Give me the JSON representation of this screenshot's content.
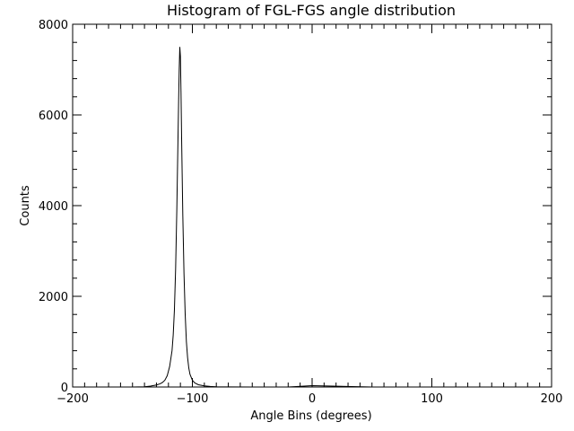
{
  "chart_data": {
    "type": "line",
    "title": "Histogram of FGL-FGS angle distribution",
    "xlabel": "Angle Bins (degrees)",
    "ylabel": "Counts",
    "xlim": [
      -200,
      200
    ],
    "ylim": [
      0,
      8000
    ],
    "xticks": [
      -200,
      -100,
      0,
      100,
      200
    ],
    "xtick_labels": [
      "−200",
      "−100",
      "0",
      "100",
      "200"
    ],
    "yticks": [
      0,
      2000,
      4000,
      6000,
      8000
    ],
    "ytick_labels": [
      "0",
      "2000",
      "4000",
      "6000",
      "8000"
    ],
    "grid": false,
    "legend": "none",
    "series": [
      {
        "x": [
          -200,
          -150,
          -140,
          -135,
          -130,
          -127,
          -125,
          -123,
          -121,
          -119,
          -117,
          -116,
          -115,
          -114,
          -113,
          -112,
          -111.5,
          -111,
          -110.5,
          -110,
          -109.5,
          -109,
          -108,
          -107,
          -106,
          -105,
          -104,
          -103,
          -102,
          -100,
          -98,
          -95,
          -90,
          -85,
          -80,
          -75,
          -50,
          -20,
          0,
          50,
          100,
          150,
          200
        ],
        "y": [
          0,
          0,
          5,
          20,
          45,
          70,
          100,
          150,
          250,
          450,
          800,
          1150,
          1700,
          2600,
          3900,
          5500,
          6300,
          7000,
          7500,
          7300,
          6500,
          5500,
          3800,
          2500,
          1600,
          1000,
          650,
          420,
          280,
          150,
          90,
          50,
          25,
          12,
          6,
          3,
          1,
          0,
          30,
          0,
          0,
          0,
          0
        ],
        "color": "#000000"
      }
    ]
  }
}
